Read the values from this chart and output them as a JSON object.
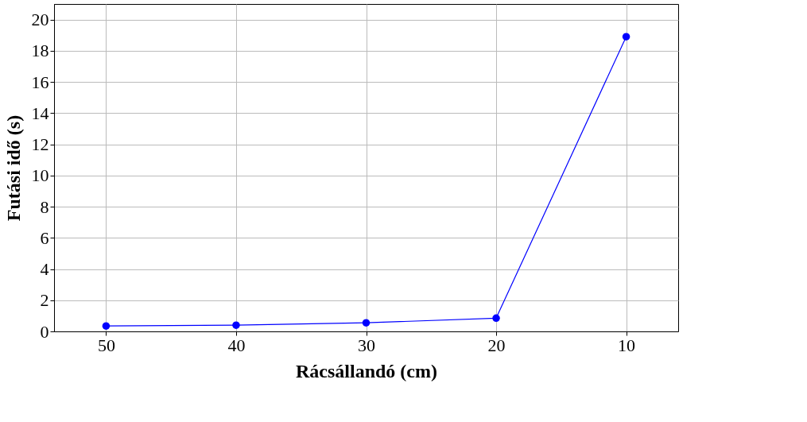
{
  "chart_data": {
    "type": "line",
    "xlabel": "Rácsállandó (cm)",
    "ylabel": "Futási idő (s)",
    "x": [
      50,
      40,
      30,
      20,
      10
    ],
    "series": [
      {
        "color": "#0000ff",
        "values": [
          0.35,
          0.4,
          0.55,
          0.85,
          18.9
        ]
      }
    ],
    "xlim": [
      54,
      6
    ],
    "xticks": [
      50,
      40,
      30,
      20,
      10
    ],
    "ylim": [
      0,
      21
    ],
    "yticks": [
      0,
      2,
      4,
      6,
      8,
      10,
      12,
      14,
      16,
      18,
      20
    ],
    "grid": true,
    "marker": "circle",
    "line_style": "solid"
  }
}
